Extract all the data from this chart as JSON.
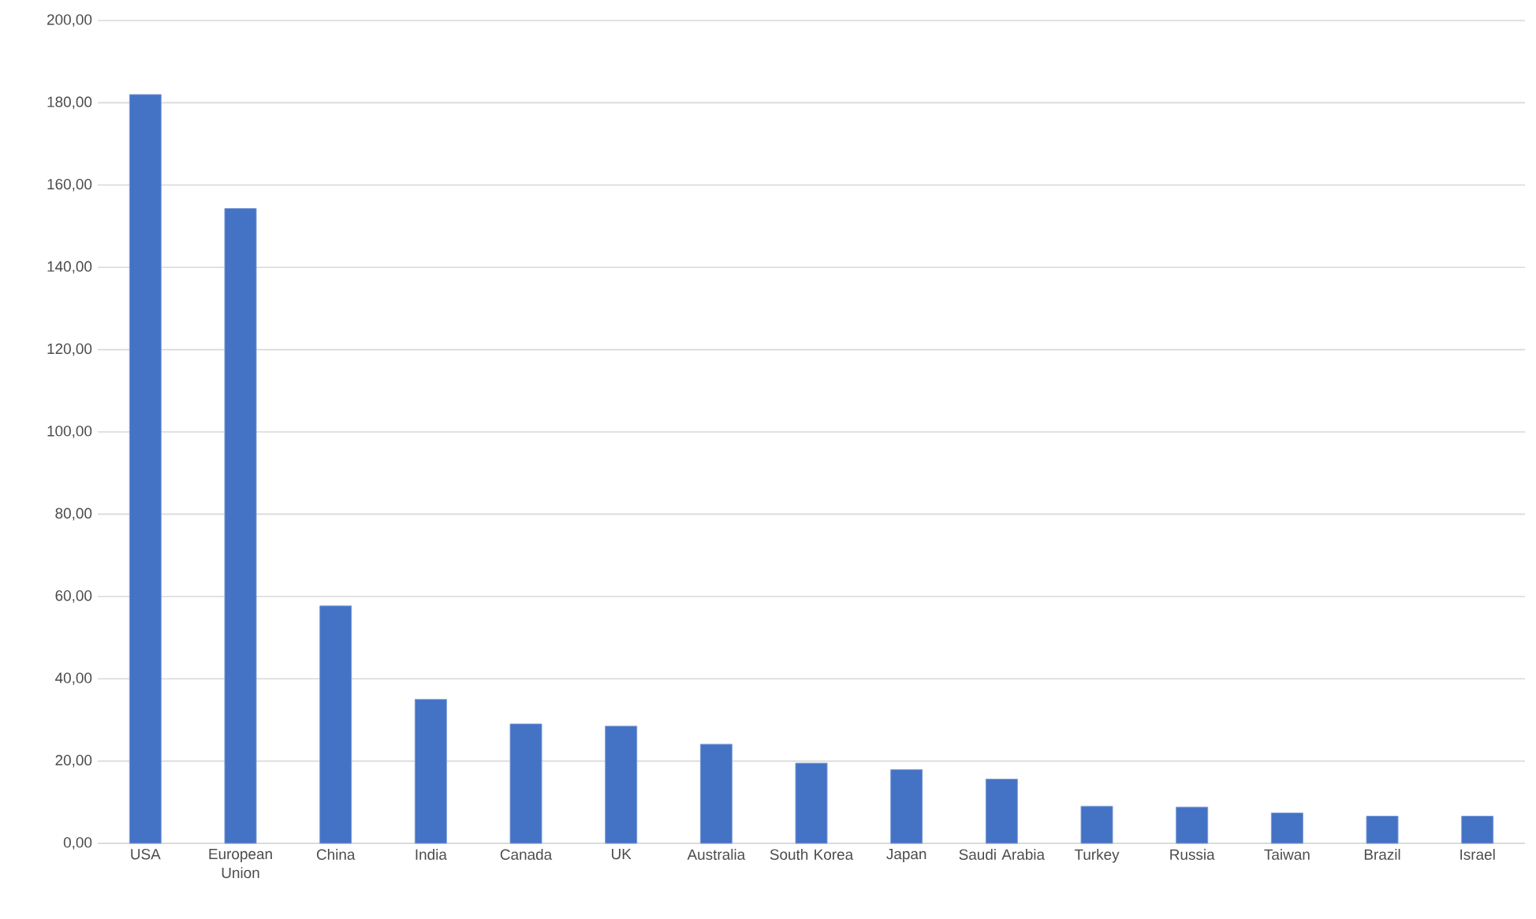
{
  "chart_data": {
    "type": "bar",
    "categories": [
      "USA",
      "European Union",
      "China",
      "India",
      "Canada",
      "UK",
      "Australia",
      "South Korea",
      "Japan",
      "Saudi Arabia",
      "Turkey",
      "Russia",
      "Taiwan",
      "Brazil",
      "Israel"
    ],
    "values": [
      182,
      154.3,
      57.7,
      35.0,
      29.0,
      28.5,
      24.1,
      19.5,
      17.9,
      15.6,
      9.0,
      8.8,
      7.4,
      6.6,
      6.6
    ],
    "color": "#4472c4",
    "ylim": [
      0,
      200
    ],
    "yticks": [
      {
        "value": 0,
        "label": "0,00"
      },
      {
        "value": 20,
        "label": "20,00"
      },
      {
        "value": 40,
        "label": "40,00"
      },
      {
        "value": 60,
        "label": "60,00"
      },
      {
        "value": 80,
        "label": "80,00"
      },
      {
        "value": 100,
        "label": "100,00"
      },
      {
        "value": 120,
        "label": "120,00"
      },
      {
        "value": 140,
        "label": "140,00"
      },
      {
        "value": 160,
        "label": "160,00"
      },
      {
        "value": 180,
        "label": "180,00"
      },
      {
        "value": 200,
        "label": "200,00"
      }
    ],
    "grid": "y"
  }
}
